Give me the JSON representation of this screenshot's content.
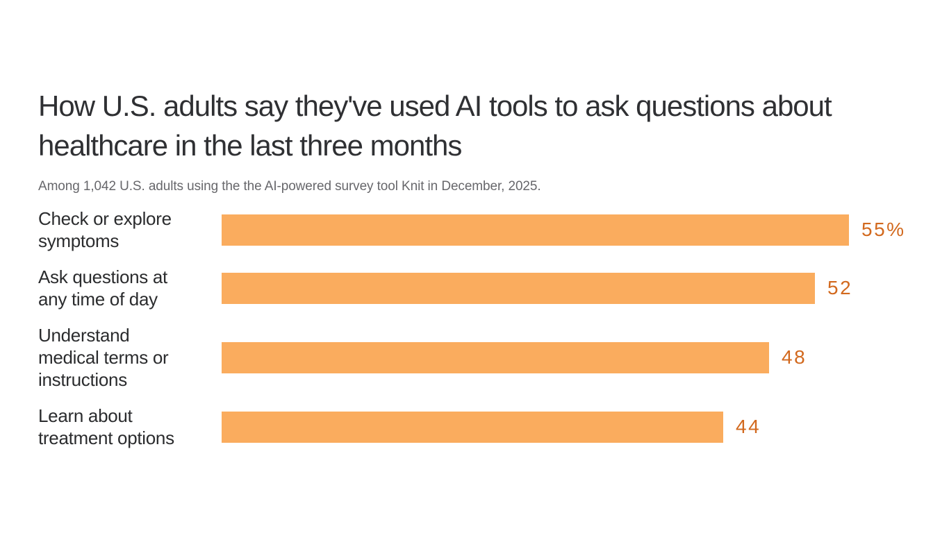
{
  "page": {
    "background_color": "#ffffff"
  },
  "chart_data": {
    "type": "bar",
    "orientation": "horizontal",
    "title": "How U.S. adults say they've used AI tools to ask questions about healthcare in the last three months",
    "subtitle": "Among 1,042 U.S. adults using the the AI-powered survey tool Knit in December, 2025.",
    "categories": [
      "Check or explore symptoms",
      "Ask questions at any time of day",
      "Understand medical terms or instructions",
      "Learn about treatment options"
    ],
    "values": [
      55,
      52,
      48,
      44
    ],
    "value_labels": [
      "55%",
      "52",
      "48",
      "44"
    ],
    "unit": "%",
    "xlim": [
      0,
      55
    ],
    "grid": false,
    "axes_shown": false,
    "legend": "none",
    "bar_color": "#FAAC5E",
    "value_label_color": "#D2691E",
    "category_label_color": "#2B2C2E",
    "title_color": "#2F3033",
    "subtitle_color": "#67676B"
  }
}
